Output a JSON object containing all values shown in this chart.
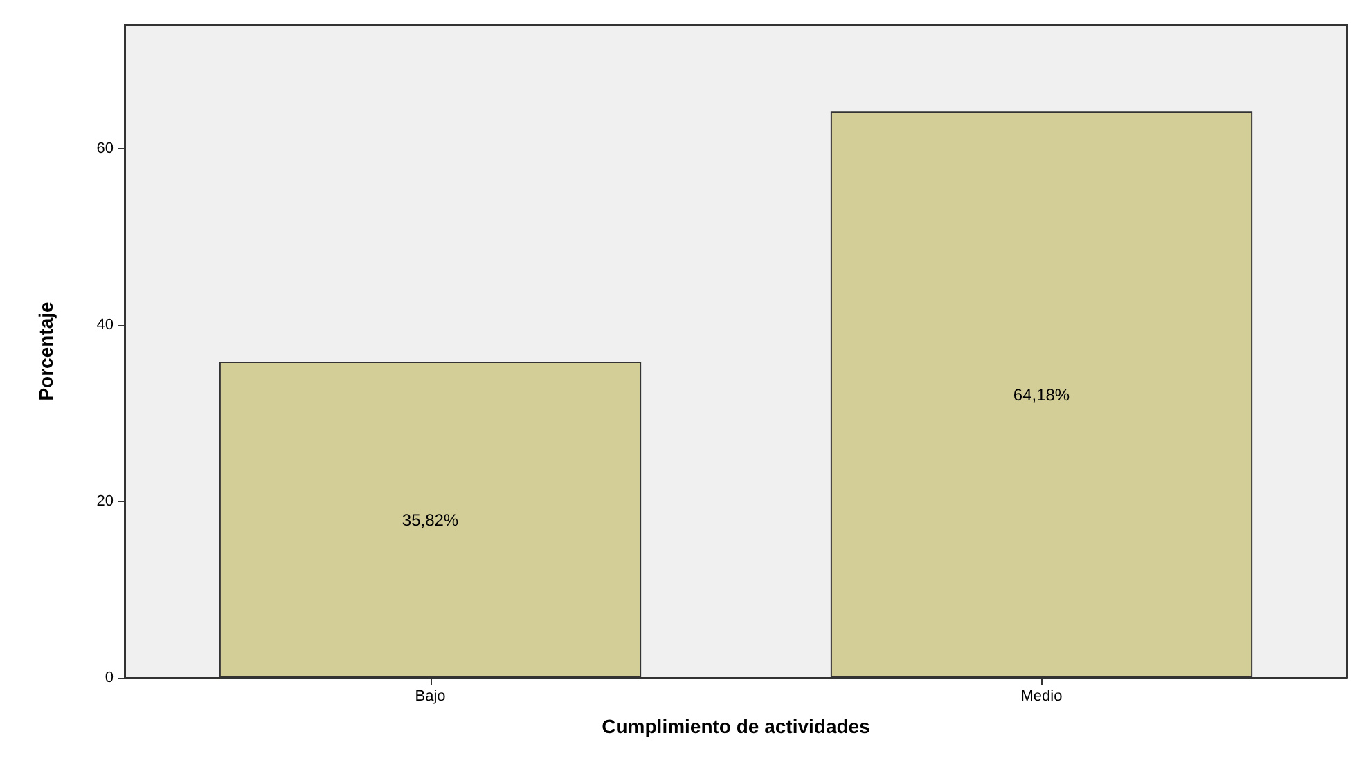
{
  "chart_data": {
    "type": "bar",
    "xlabel": "Cumplimiento de actividades",
    "ylabel": "Porcentaje",
    "categories": [
      "Bajo",
      "Medio"
    ],
    "values": [
      35.82,
      64.18
    ],
    "value_labels": [
      "35,82%",
      "64,18%"
    ],
    "color": "#d3cd98",
    "ylim": [
      0,
      74
    ],
    "yticks": [
      0,
      20,
      40,
      60
    ],
    "grid": false
  }
}
